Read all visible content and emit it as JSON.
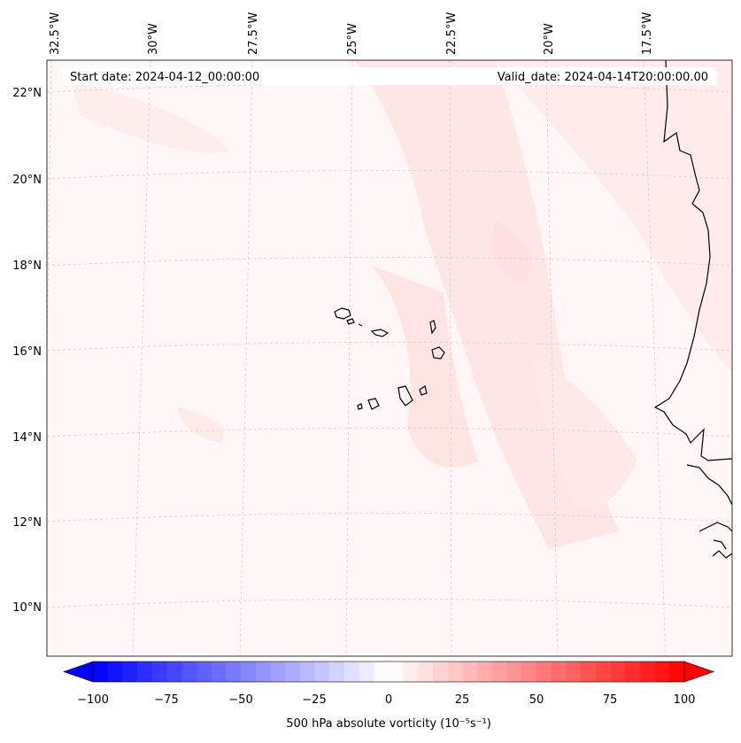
{
  "header": {
    "start_date": "Start date: 2024-04-12_00:00:00",
    "valid_date": "Valid_date: 2024-04-14T20:00:00.00"
  },
  "map": {
    "lon_labels": [
      "32.5°W",
      "30°W",
      "27.5°W",
      "25°W",
      "22.5°W",
      "20°W",
      "17.5°W"
    ],
    "lat_labels": [
      "22°N",
      "20°N",
      "18°N",
      "16°N",
      "14°N",
      "12°N",
      "10°N"
    ],
    "gridlines": "dashed",
    "features": [
      "coastline",
      "cape-verde-islands",
      "west-african-coast"
    ]
  },
  "colorbar": {
    "label": "500 hPa absolute vorticity (10⁻⁵s⁻¹)",
    "ticks": [
      "−100",
      "−75",
      "−50",
      "−25",
      "0",
      "25",
      "50",
      "75",
      "100"
    ],
    "range": [
      -100,
      100
    ],
    "colors": {
      "min": "#0000ff",
      "mid": "#ffffff",
      "max": "#ff0000"
    }
  }
}
